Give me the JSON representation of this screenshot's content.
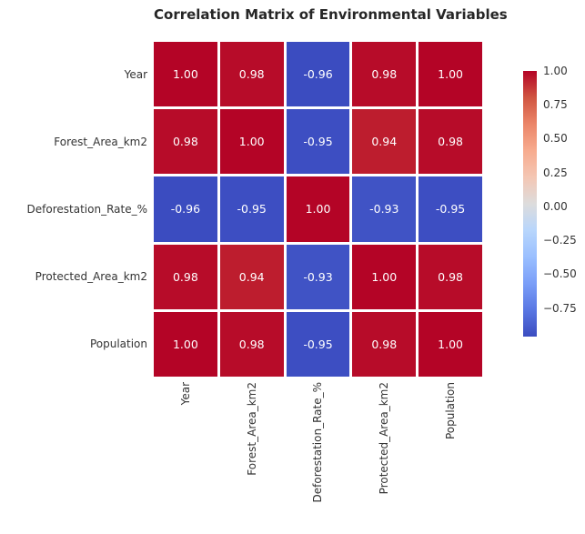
{
  "chart_data": {
    "type": "heatmap",
    "title": "Correlation Matrix of Environmental Variables",
    "variables": [
      "Year",
      "Forest_Area_km2",
      "Deforestation_Rate_%",
      "Protected_Area_km2",
      "Population"
    ],
    "matrix": [
      [
        1.0,
        0.98,
        -0.96,
        0.98,
        1.0
      ],
      [
        0.98,
        1.0,
        -0.95,
        0.94,
        0.98
      ],
      [
        -0.96,
        -0.95,
        1.0,
        -0.93,
        -0.95
      ],
      [
        0.98,
        0.94,
        -0.93,
        1.0,
        0.98
      ],
      [
        1.0,
        0.98,
        -0.95,
        0.98,
        1.0
      ]
    ],
    "annotation_decimals": 2,
    "annotation_color": "#ffffff",
    "grid_line_color": "#ffffff",
    "colormap": "coolwarm",
    "vmin": -0.96,
    "vmax": 1.0,
    "colormap_stops": [
      "#3b4cc0",
      "#5977e3",
      "#7a9ef8",
      "#9abfff",
      "#b8d6fc",
      "#dddcdc",
      "#f4c6b3",
      "#f7ab8e",
      "#eb8568",
      "#d05541",
      "#b40426"
    ],
    "colorbar": {
      "position": "right",
      "ticks": [
        {
          "value": 1.0,
          "label": "1.00"
        },
        {
          "value": 0.75,
          "label": "0.75"
        },
        {
          "value": 0.5,
          "label": "0.50"
        },
        {
          "value": 0.25,
          "label": "0.25"
        },
        {
          "value": 0.0,
          "label": "0.00"
        },
        {
          "value": -0.25,
          "label": "−0.25"
        },
        {
          "value": -0.5,
          "label": "−0.50"
        },
        {
          "value": -0.75,
          "label": "−0.75"
        }
      ]
    },
    "axes": {
      "x_tick_rotation_deg": 90,
      "grid_on": false
    }
  }
}
